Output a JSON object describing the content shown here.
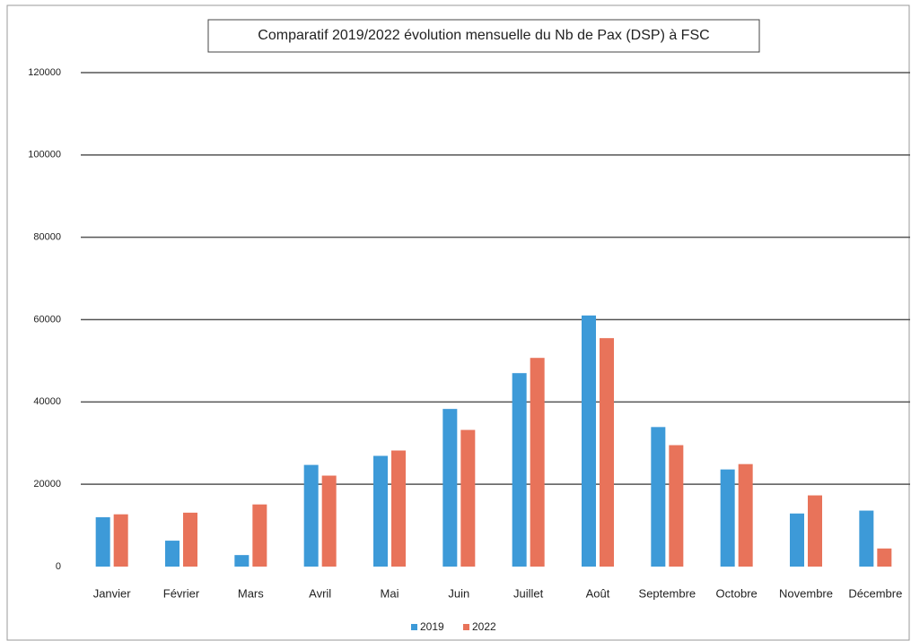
{
  "chart_data": {
    "type": "bar",
    "title": "Comparatif 2019/2022 évolution mensuelle du Nb de Pax (DSP) à FSC",
    "categories": [
      "Janvier",
      "Février",
      "Mars",
      "Avril",
      "Mai",
      "Juin",
      "Juillet",
      "Août",
      "Septembre",
      "Octobre",
      "Novembre",
      "Décembre"
    ],
    "series": [
      {
        "name": "2019",
        "color": "#3d9ad8",
        "values": [
          12000,
          6300,
          2800,
          24700,
          26900,
          38300,
          47000,
          61000,
          33900,
          23600,
          12900,
          13600
        ]
      },
      {
        "name": "2022",
        "color": "#e8735a",
        "values": [
          12700,
          13100,
          15100,
          22100,
          28200,
          33200,
          50700,
          55500,
          29500,
          24900,
          17300,
          4400
        ]
      }
    ],
    "ylim": [
      0,
      120000
    ],
    "yticks": [
      0,
      20000,
      40000,
      60000,
      80000,
      100000,
      120000
    ],
    "grid": true,
    "legend": "bottom"
  }
}
